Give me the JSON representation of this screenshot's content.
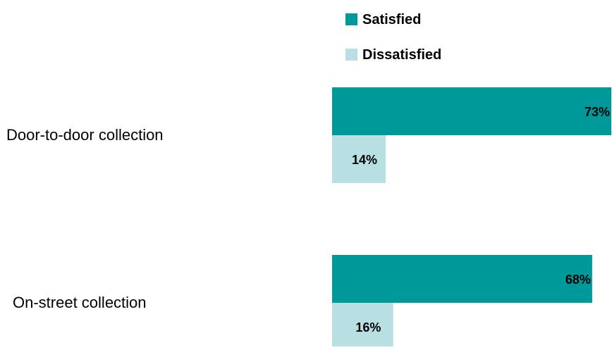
{
  "chart_data": {
    "type": "bar",
    "orientation": "horizontal",
    "categories": [
      "Door-to-door collection",
      "On-street collection"
    ],
    "series": [
      {
        "name": "Satisfied",
        "values": [
          73,
          68
        ],
        "color": "#009999"
      },
      {
        "name": "Dissatisfied",
        "values": [
          14,
          16
        ],
        "color": "#b8e0e3"
      }
    ],
    "value_suffix": "%",
    "xlim": [
      0,
      73
    ],
    "grid": false,
    "legend_position": "top-right",
    "title": "",
    "xlabel": "",
    "ylabel": ""
  }
}
